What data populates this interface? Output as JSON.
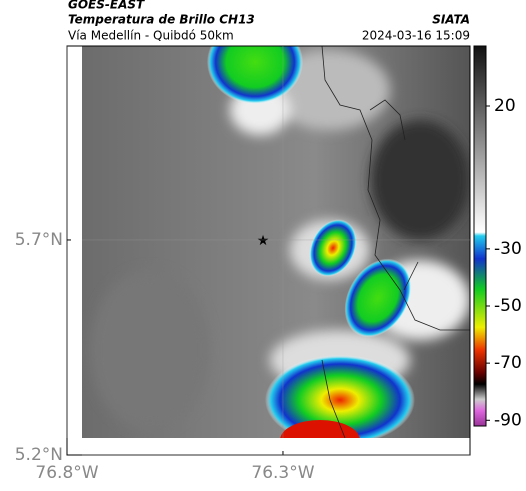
{
  "header": {
    "title": "GOES-EAST",
    "subtitle": "Temperatura de Brillo CH13",
    "location": "Vía Medellín - Quibdó 50km",
    "source": "SIATA",
    "datetime": "2024-03-16 15:09"
  },
  "map": {
    "xlim": [
      -76.8,
      -75.867
    ],
    "ylim": [
      5.2,
      6.151
    ],
    "xticks": [
      {
        "value": -76.8,
        "label": "76.8°W"
      },
      {
        "value": -76.3,
        "label": "76.3°W"
      }
    ],
    "yticks": [
      {
        "value": 5.2,
        "label": "5.2°N"
      },
      {
        "value": 5.7,
        "label": "5.7°N"
      }
    ]
  },
  "colorbar": {
    "range": [
      -92,
      41
    ],
    "ticks": [
      20,
      -30,
      -50,
      -70,
      -90
    ]
  }
}
